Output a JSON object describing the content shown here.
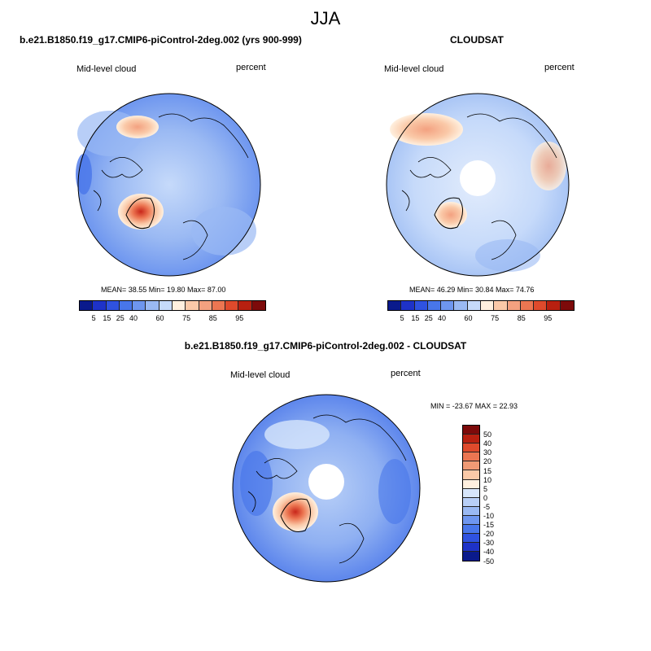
{
  "season": "JJA",
  "panels": [
    {
      "id": "model",
      "title": "b.e21.B1850.f19_g17.CMIP6-piControl-2deg.002 (yrs 900-999)",
      "variable": "Mid-level cloud",
      "units": "percent",
      "stats": "MEAN=  38.55  Min=  19.80  Max=  87.00"
    },
    {
      "id": "obs",
      "title": "CLOUDSAT",
      "variable": "Mid-level cloud",
      "units": "percent",
      "stats": "MEAN=  46.29  Min=  30.84  Max=  74.76"
    },
    {
      "id": "diff",
      "title": "b.e21.B1850.f19_g17.CMIP6-piControl-2deg.002 - CLOUDSAT",
      "variable": "Mid-level cloud",
      "units": "percent",
      "stats": "MIN = -23.67 MAX =  22.93"
    }
  ],
  "colorbar_abs": {
    "colors": [
      "#0a1a8c",
      "#1e32c8",
      "#2f52e0",
      "#4876ea",
      "#6e96ef",
      "#9ab9f3",
      "#c6dafa",
      "#fff0df",
      "#fac9a8",
      "#f3a180",
      "#ec7652",
      "#df4a2c",
      "#b82010",
      "#7d0a0a"
    ],
    "tick_labels": [
      "5",
      "15",
      "25",
      "40",
      "60",
      "75",
      "85",
      "95"
    ]
  },
  "colorbar_diff": {
    "colors": [
      "#7d0a0a",
      "#b82010",
      "#df4a2c",
      "#ec7652",
      "#f09a75",
      "#fac9a8",
      "#fff0df",
      "#d7e6fb",
      "#b8cff7",
      "#9ab9f3",
      "#6e96ef",
      "#4876ea",
      "#2f52e0",
      "#1e32c8",
      "#0a1a8c"
    ],
    "tick_labels": [
      "50",
      "40",
      "30",
      "20",
      "15",
      "10",
      "5",
      "0",
      "-5",
      "-10",
      "-15",
      "-20",
      "-30",
      "-40",
      "-50"
    ]
  },
  "chart_data": [
    {
      "type": "heatmap",
      "projection": "north polar stereographic",
      "title": "b.e21.B1850.f19_g17.CMIP6-piControl-2deg.002 (yrs 900-999)",
      "variable": "Mid-level cloud",
      "units": "percent",
      "mean": 38.55,
      "min": 19.8,
      "max": 87.0,
      "levels": [
        5,
        10,
        15,
        20,
        25,
        30,
        40,
        50,
        60,
        70,
        75,
        80,
        85,
        90,
        95
      ]
    },
    {
      "type": "heatmap",
      "projection": "north polar stereographic",
      "title": "CLOUDSAT",
      "variable": "Mid-level cloud",
      "units": "percent",
      "mean": 46.29,
      "min": 30.84,
      "max": 74.76,
      "missing_region": "pole"
    },
    {
      "type": "heatmap",
      "projection": "north polar stereographic",
      "title": "b.e21.B1850.f19_g17.CMIP6-piControl-2deg.002 - CLOUDSAT",
      "variable": "Mid-level cloud",
      "units": "percent",
      "min": -23.67,
      "max": 22.93,
      "levels": [
        -50,
        -40,
        -30,
        -20,
        -15,
        -10,
        -5,
        0,
        5,
        10,
        15,
        20,
        30,
        40,
        50
      ]
    }
  ]
}
